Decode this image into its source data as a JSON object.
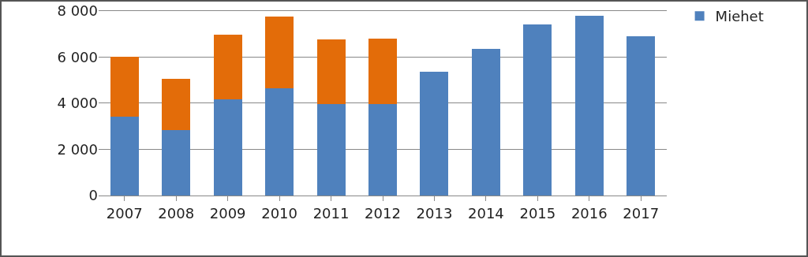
{
  "chart_data": {
    "type": "bar",
    "stacked": true,
    "categories": [
      "2007",
      "2008",
      "2009",
      "2010",
      "2011",
      "2012",
      "2013",
      "2014",
      "2015",
      "2016",
      "2017"
    ],
    "series": [
      {
        "name": "Miehet",
        "color": "#4f81bd",
        "values": [
          3400,
          2850,
          4150,
          4650,
          3950,
          3950,
          5350,
          6350,
          7400,
          7800,
          6900
        ]
      },
      {
        "color": "#e36c09",
        "values": [
          2600,
          2200,
          2800,
          3100,
          2800,
          2850,
          null,
          null,
          null,
          null,
          null
        ]
      }
    ],
    "ylim": [
      0,
      8400
    ],
    "yticks": [
      {
        "value": 0,
        "label": "0"
      },
      {
        "value": 2000,
        "label": "2 000"
      },
      {
        "value": 4000,
        "label": "4 000"
      },
      {
        "value": 6000,
        "label": "6 000"
      },
      {
        "value": 8000,
        "label": "8 000"
      }
    ],
    "grid": "y",
    "legend": "top right"
  }
}
